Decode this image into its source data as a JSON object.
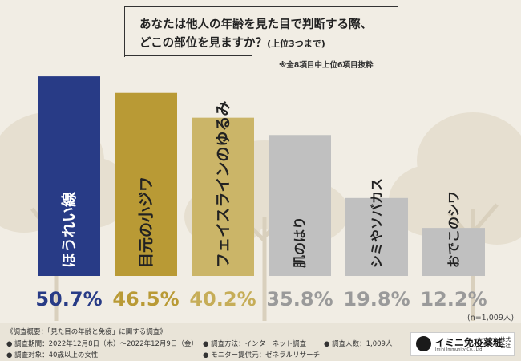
{
  "question": {
    "line1": "あなたは他人の年齢を見た目で判断する際、",
    "line2": "どこの部位を見ますか？",
    "line2_note": "(上位3つまで)"
  },
  "subnote": "※全8項目中上位6項目抜粋",
  "sample_note": "(n=1,009人)",
  "footer": {
    "overview": "《調査概要：「見た目の年齢と免疫」に関する調査》",
    "period": "● 調査期間：2022年12月8日（木）～2022年12月9日（金）",
    "target": "● 調査対象：40歳以上の女性",
    "method": "● 調査方法：インターネット調査",
    "provider": "● モニター提供元：ゼネラルリサーチ",
    "count": "● 調査人数：1,009人",
    "logo_main": "イミニ免疫薬粧",
    "logo_sub": "Imini Immunity Co., Ltd.",
    "logo_side": "株式会社"
  },
  "colors": {
    "background": "#f1ede4",
    "navy": "#283b86",
    "gold": "#b99a35",
    "light_gold": "#cbb568",
    "gray": "#c0c0c0"
  },
  "chart_data": {
    "type": "bar",
    "categories": [
      "ほうれい線",
      "目元の小ジワ",
      "フェイスラインのゆるみ",
      "肌のはり",
      "シミやソバカス",
      "おでこのシワ"
    ],
    "values": [
      50.7,
      46.5,
      40.2,
      35.8,
      19.8,
      12.2
    ],
    "value_labels": [
      "50.7%",
      "46.5%",
      "40.2%",
      "35.8%",
      "19.8%",
      "12.2%"
    ],
    "unit": "%",
    "bar_colors": [
      "#283b86",
      "#b99a35",
      "#cbb568",
      "#c0c0c0",
      "#c0c0c0",
      "#c0c0c0"
    ],
    "label_colors": [
      "#283b86",
      "#b99a35",
      "#c6ad58",
      "#9a9a9a",
      "#9a9a9a",
      "#9a9a9a"
    ],
    "ylim": [
      0,
      55
    ],
    "grid": false,
    "legend": "none"
  }
}
